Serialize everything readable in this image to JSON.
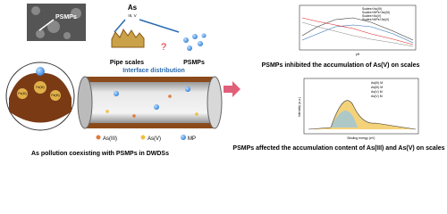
{
  "sem_label": "PSMPs",
  "source": {
    "label": "As",
    "states": "III, V"
  },
  "branches": {
    "left": "Pipe scales",
    "question": "?",
    "right": "PSMPs"
  },
  "pipe": {
    "title": "Interface distribution",
    "legend": [
      "As(III)",
      "As(V)",
      "MP"
    ]
  },
  "caption_left": "As pollution coexisting with PSMPs in DWDSs",
  "chart_top": {
    "legend": [
      "Scales+As(III)",
      "Scales+MPs+As(III)",
      "Scales+As(V)",
      "Scales+MPs+As(V)"
    ],
    "x_label": "pH",
    "caption": "PSMPs inhibited the accumulation of As(V) on scales"
  },
  "chart_bottom": {
    "legend": [
      "As(III) M",
      "As(III) M",
      "As(V) M",
      "As(V) M"
    ],
    "x_label": "Binding energy (eV)",
    "y_label": "Intensity (a.u.)",
    "caption": "PSMPs affected the accumulation content of As(III) and As(V) on scales"
  },
  "circle_labels": [
    "Fe(III)",
    "Fe(III)",
    "Fe(III)"
  ]
}
